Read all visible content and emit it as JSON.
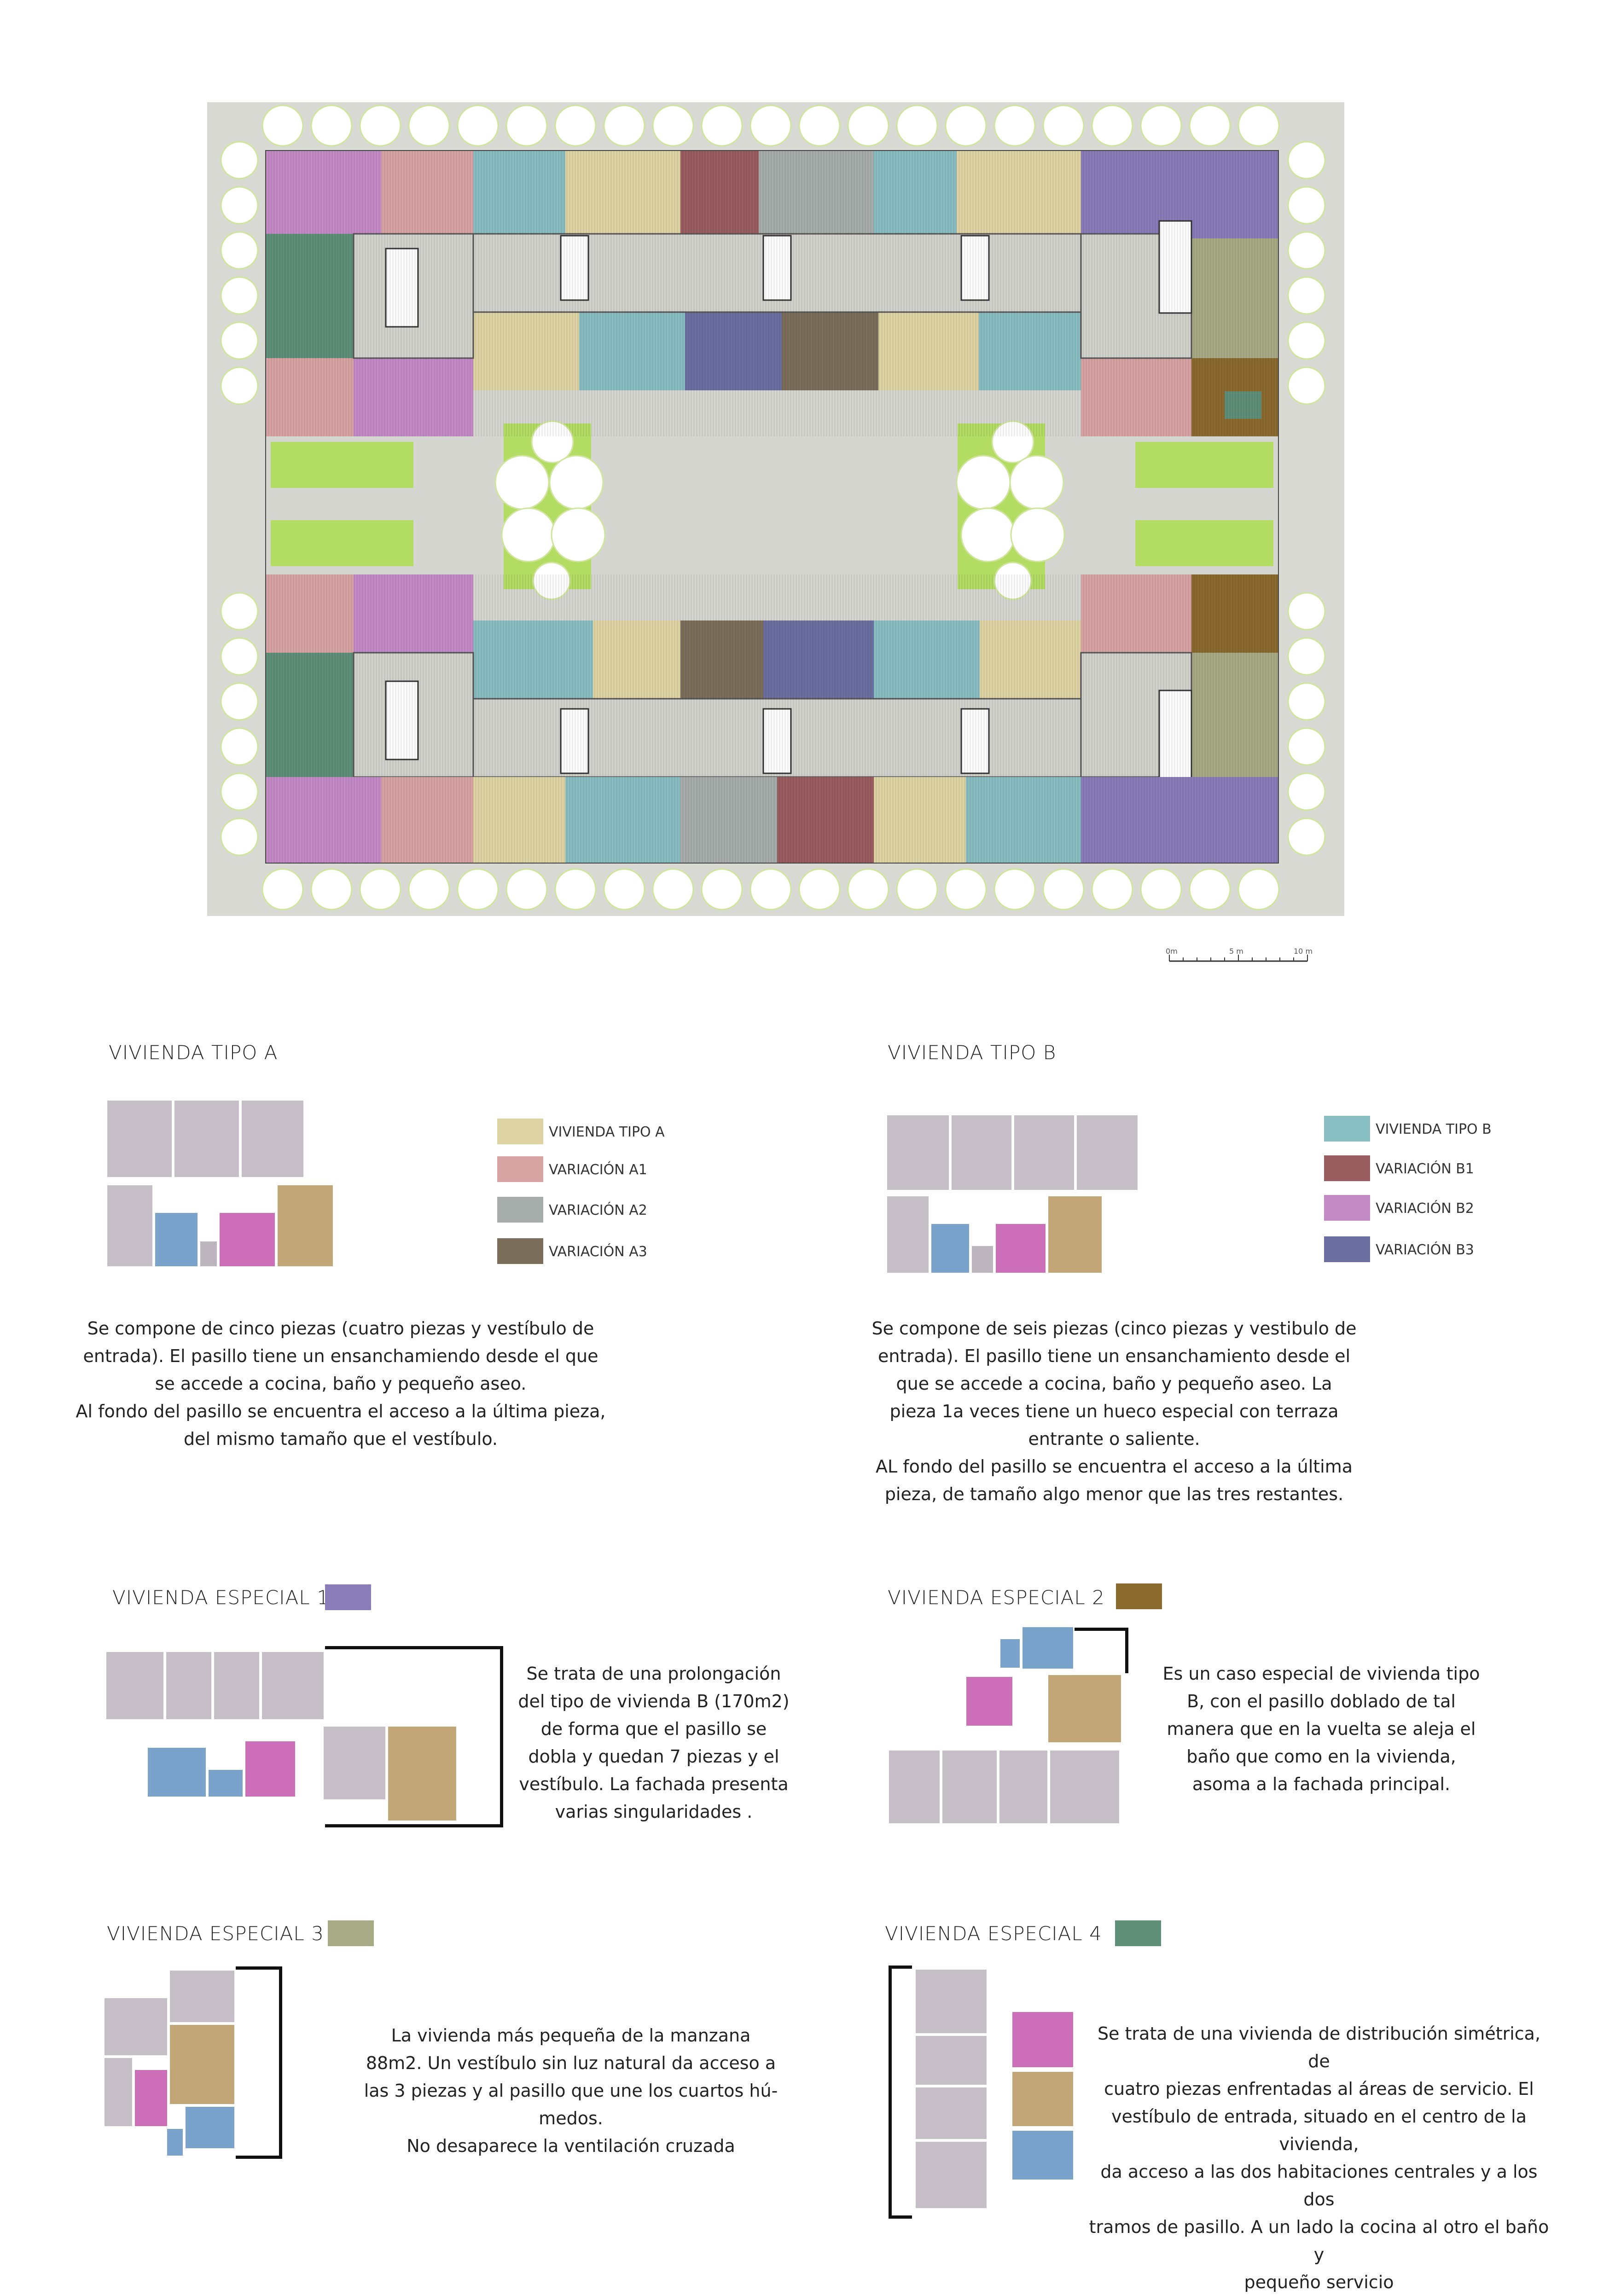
{
  "colors": {
    "grey": "#c5bec6",
    "blue": "#7aa3cc",
    "pink": "#cc6fb8",
    "tan": "#c3a677",
    "small": "#bdb5bd",
    "plot_bg": "#dadad4",
    "court": "#d6d6d0",
    "green": "#b3dc62",
    "tree_stroke": "#cfe59c",
    "tipoA": "#ded3a3",
    "varA1": "#d7a3a3",
    "varA2": "#a6adaa",
    "varA3": "#7b6f5b",
    "tipoB": "#88bdc2",
    "varB1": "#9a5d60",
    "varB2": "#c48ac6",
    "varB3": "#6a6fa0",
    "esp1": "#8a7cb8",
    "esp2": "#8a6a2e",
    "esp3": "#a8aa86",
    "esp4": "#5f8f78"
  },
  "scale": {
    "t0": "0m",
    "t5": "5 m",
    "t10": "10 m"
  },
  "tipoA": {
    "title": "VIVIENDA TIPO A",
    "legend": [
      "VIVIENDA TIPO A",
      "VARIACIÓN A1",
      "VARIACIÓN A2",
      "VARIACIÓN A3"
    ],
    "text": [
      "Se compone de cinco piezas (cuatro piezas y vestíbulo de",
      "entrada). El pasillo tiene un ensanchamiendo desde el que",
      "se accede a cocina, baño y pequeño aseo.",
      "Al fondo del pasillo se encuentra el acceso a la última pieza,",
      "del mismo tamaño que el vestíbulo."
    ]
  },
  "tipoB": {
    "title": "VIVIENDA TIPO B",
    "legend": [
      "VIVIENDA TIPO B",
      "VARIACIÓN B1",
      "VARIACIÓN B2",
      "VARIACIÓN B3"
    ],
    "text": [
      "Se compone de seis piezas (cinco piezas y vestibulo de",
      "entrada). El pasillo tiene un ensanchamiento desde el",
      "que se accede a cocina, baño y pequeño aseo. La",
      "pieza 1a veces tiene un hueco especial con terraza",
      "entrante o saliente.",
      "AL fondo del pasillo se encuentra el acceso a la última",
      "pieza, de tamaño algo menor que las tres restantes."
    ]
  },
  "esp1": {
    "title": "VIVIENDA ESPECIAL 1",
    "text": [
      "Se trata de una prolongación",
      "del tipo de vivienda B (170m2)",
      "de forma que el pasillo se",
      "dobla y quedan 7 piezas y el",
      "vestíbulo. La fachada presenta",
      "varias singularidades ."
    ]
  },
  "esp2": {
    "title": "VIVIENDA ESPECIAL 2",
    "text": [
      "Es un caso especial de vivienda tipo",
      "B, con el pasillo doblado de tal",
      "manera que en la vuelta se aleja el",
      "baño que como en la vivienda,",
      "asoma a la fachada principal."
    ]
  },
  "esp3": {
    "title": "VIVIENDA ESPECIAL 3",
    "text": [
      "La vivienda más pequeña de la manzana",
      "88m2. Un vestíbulo sin luz natural da acceso a",
      "las 3 piezas y al pasillo que une los cuartos hú-",
      "medos.",
      "No desaparece la ventilación cruzada"
    ]
  },
  "esp4": {
    "title": "VIVIENDA ESPECIAL 4",
    "text": [
      "Se trata de una vivienda de distribución simétrica, de",
      "cuatro piezas enfrentadas al áreas de servicio. El",
      "vestíbulo de entrada, situado en el centro de la vivienda,",
      "da acceso a las dos habitaciones centrales y a los dos",
      "tramos de pasillo. A un lado la cocina al otro el baño y",
      "pequeño servicio"
    ]
  }
}
